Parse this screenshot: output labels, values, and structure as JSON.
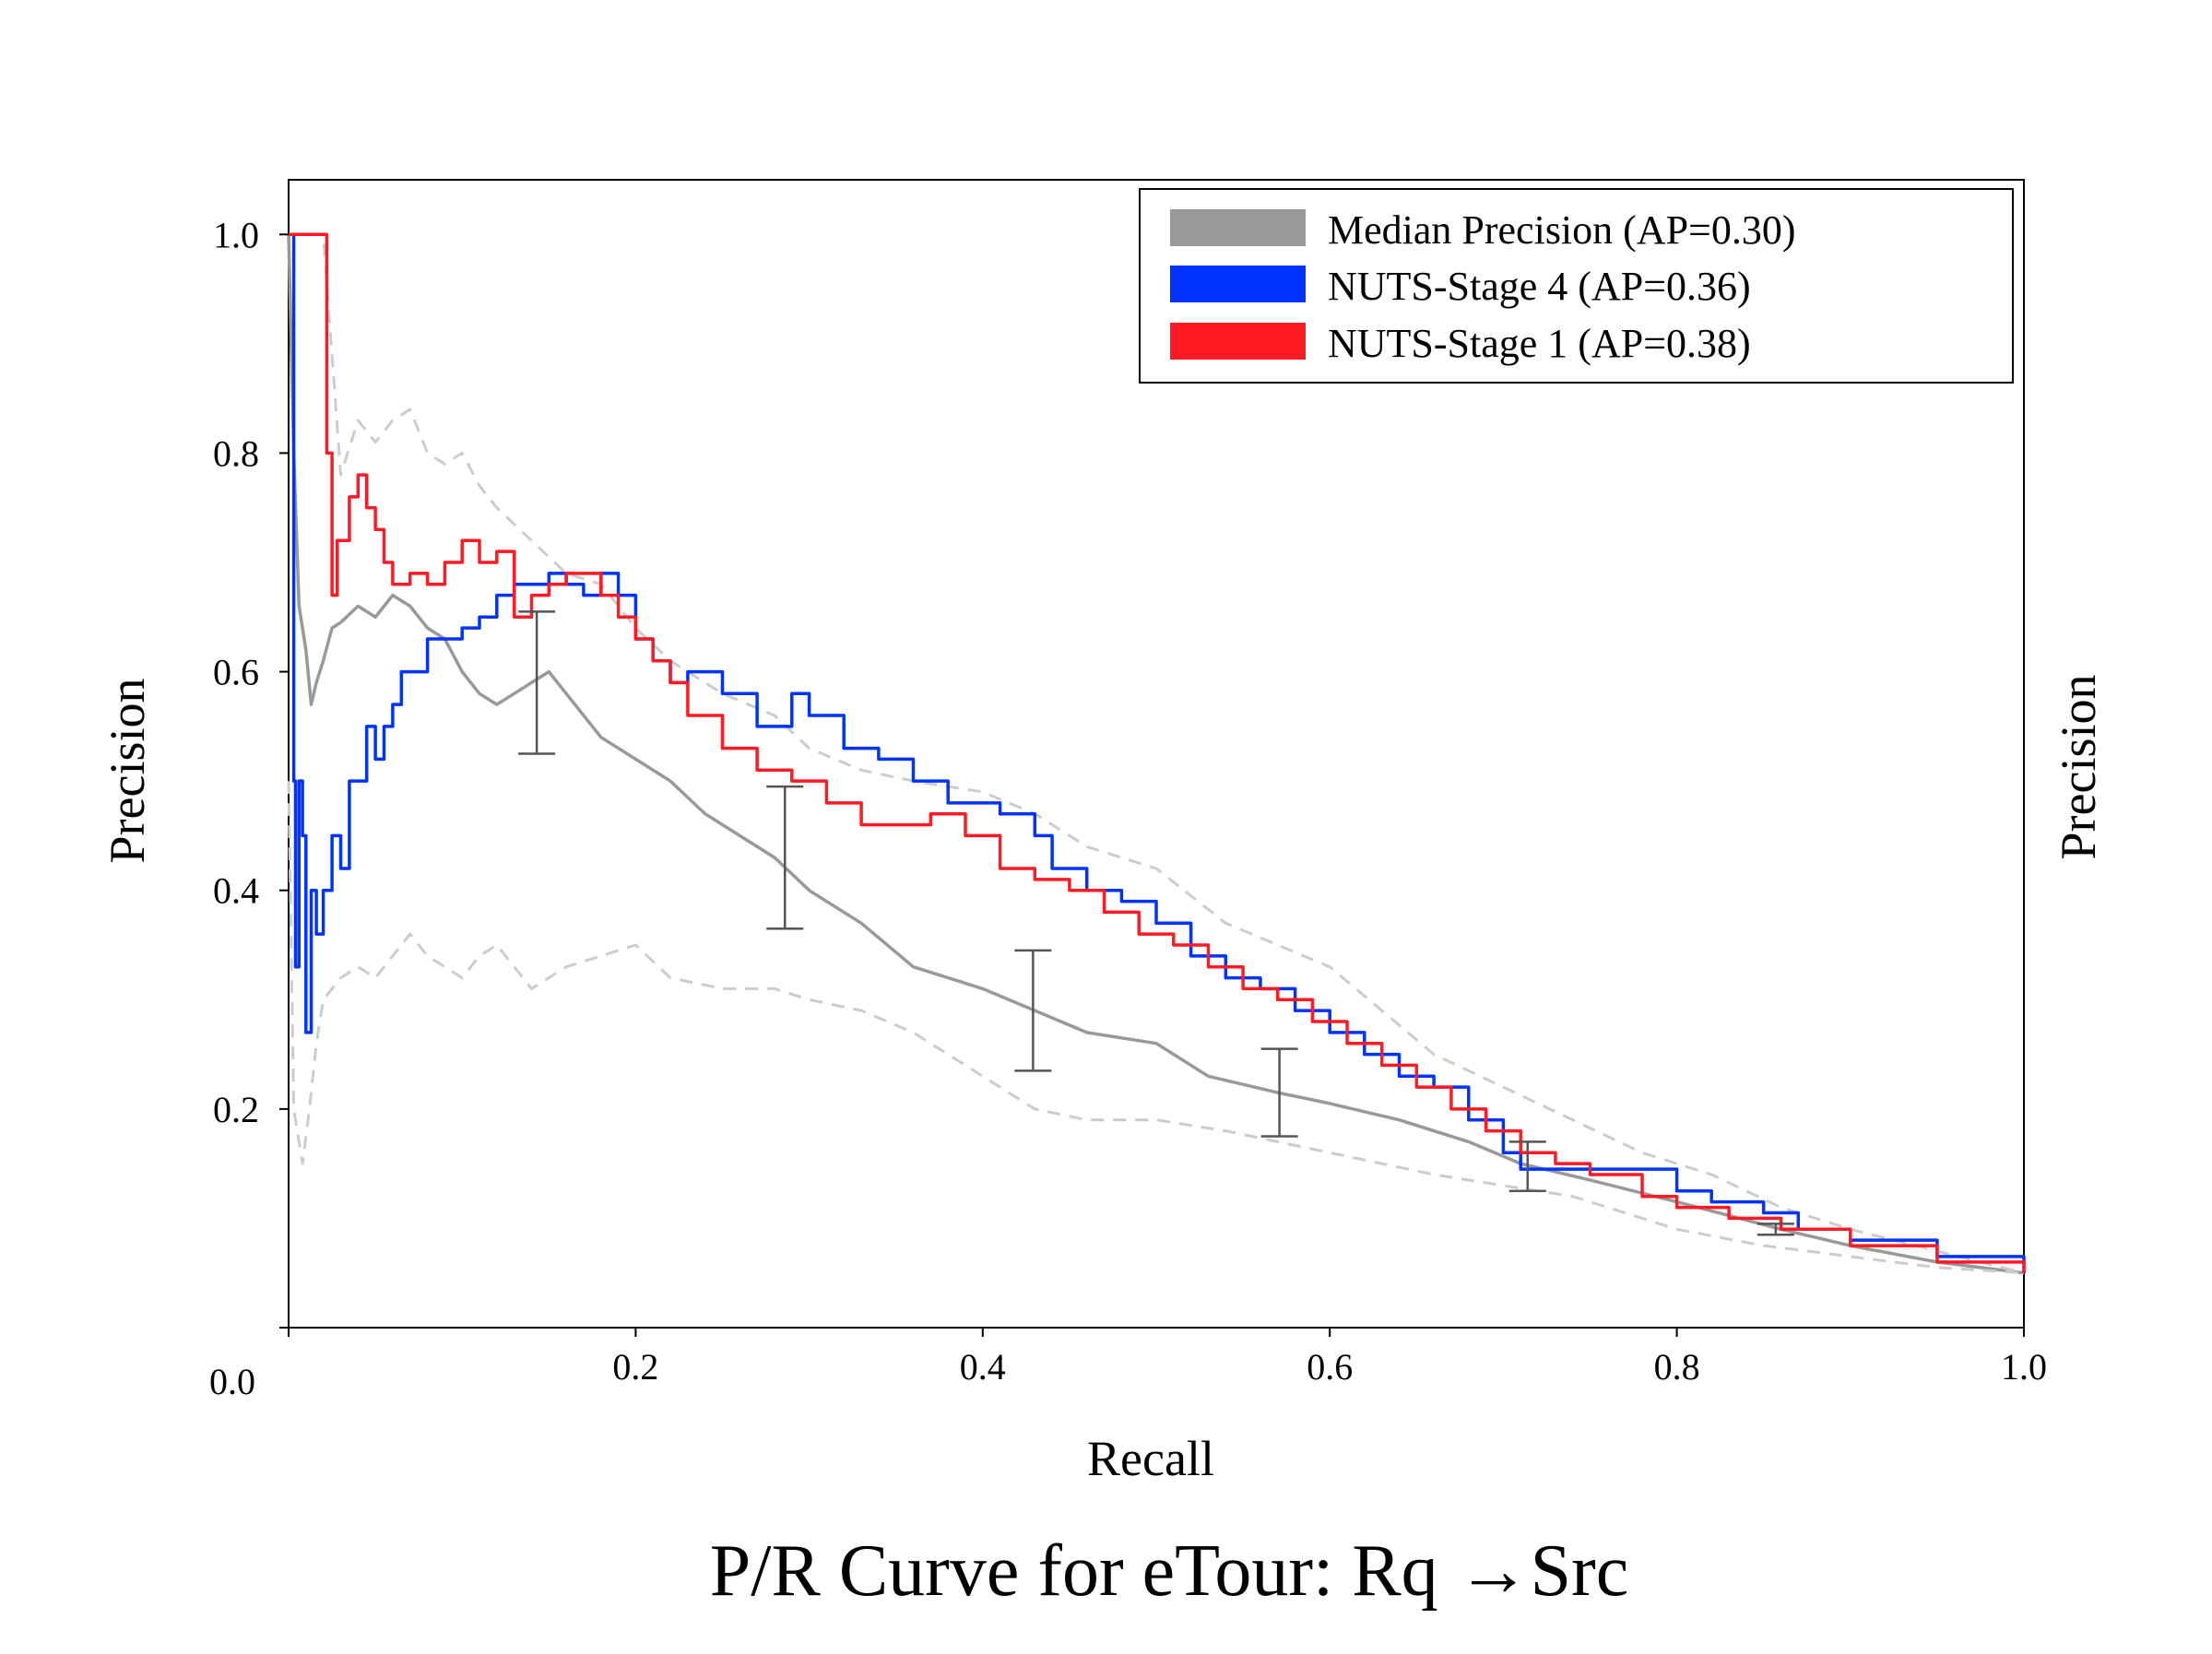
{
  "chart_data": {
    "type": "line",
    "title": "P/R Curve for eTour: Rq →Src",
    "xlabel": "Recall",
    "ylabel": "Precision",
    "ylabel_right": "Precision",
    "xlim": [
      0.0,
      1.0
    ],
    "ylim": [
      0.0,
      1.05
    ],
    "x_ticks": [
      {
        "value": 0.2,
        "label": "0.2"
      },
      {
        "value": 0.4,
        "label": "0.4"
      },
      {
        "value": 0.6,
        "label": "0.6"
      },
      {
        "value": 0.8,
        "label": "0.8"
      },
      {
        "value": 1.0,
        "label": "1.0"
      }
    ],
    "y_ticks": [
      {
        "value": 0.2,
        "label": "0.2"
      },
      {
        "value": 0.4,
        "label": "0.4"
      },
      {
        "value": 0.6,
        "label": "0.6"
      },
      {
        "value": 0.8,
        "label": "0.8"
      },
      {
        "value": 1.0,
        "label": "1.0"
      }
    ],
    "origin_label": "0.0",
    "grid": false,
    "legend_position": "top-right",
    "legend": [
      {
        "label": "Median Precision (AP=0.30)",
        "color": "#999999"
      },
      {
        "label": "NUTS-Stage 4 (AP=0.36)",
        "color": "#0033ff"
      },
      {
        "label": "NUTS-Stage 1 (AP=0.38)",
        "color": "#ff1a24"
      }
    ],
    "series": [
      {
        "name": "Median Precision (AP=0.30)",
        "color": "#999999",
        "style": "solid",
        "x": [
          0.0,
          0.003,
          0.006,
          0.01,
          0.013,
          0.016,
          0.02,
          0.025,
          0.03,
          0.04,
          0.05,
          0.06,
          0.07,
          0.08,
          0.09,
          0.1,
          0.11,
          0.12,
          0.13,
          0.14,
          0.15,
          0.16,
          0.18,
          0.2,
          0.22,
          0.24,
          0.26,
          0.28,
          0.3,
          0.33,
          0.36,
          0.4,
          0.43,
          0.46,
          0.5,
          0.53,
          0.57,
          0.6,
          0.64,
          0.68,
          0.71,
          0.75,
          0.8,
          0.86,
          0.9,
          0.95,
          1.0
        ],
        "y": [
          1.0,
          0.8,
          0.66,
          0.62,
          0.57,
          0.59,
          0.61,
          0.64,
          0.645,
          0.66,
          0.65,
          0.67,
          0.66,
          0.64,
          0.63,
          0.6,
          0.58,
          0.57,
          0.58,
          0.59,
          0.6,
          0.58,
          0.54,
          0.52,
          0.5,
          0.47,
          0.45,
          0.43,
          0.4,
          0.37,
          0.33,
          0.31,
          0.29,
          0.27,
          0.26,
          0.23,
          0.215,
          0.205,
          0.19,
          0.17,
          0.15,
          0.135,
          0.115,
          0.09,
          0.075,
          0.06,
          0.05
        ]
      },
      {
        "name": "",
        "color": "#cccccc",
        "style": "dashed",
        "x": [
          0.0,
          0.003,
          0.008,
          0.012,
          0.016,
          0.02,
          0.03,
          0.04,
          0.05,
          0.06,
          0.07,
          0.08,
          0.09,
          0.1,
          0.11,
          0.12,
          0.14,
          0.16,
          0.18,
          0.2,
          0.22,
          0.25,
          0.28,
          0.3,
          0.33,
          0.36,
          0.4,
          0.43,
          0.46,
          0.5,
          0.54,
          0.57,
          0.6,
          0.63,
          0.66,
          0.7,
          0.74,
          0.78,
          0.8,
          0.85,
          0.9,
          0.95,
          1.0
        ],
        "y": [
          0.5,
          0.2,
          0.15,
          0.2,
          0.26,
          0.3,
          0.32,
          0.33,
          0.32,
          0.34,
          0.36,
          0.34,
          0.33,
          0.32,
          0.34,
          0.35,
          0.31,
          0.33,
          0.34,
          0.35,
          0.32,
          0.31,
          0.31,
          0.3,
          0.29,
          0.27,
          0.23,
          0.2,
          0.19,
          0.19,
          0.18,
          0.17,
          0.16,
          0.15,
          0.14,
          0.13,
          0.12,
          0.1,
          0.09,
          0.075,
          0.065,
          0.055,
          0.05
        ]
      },
      {
        "name": "",
        "color": "#cccccc",
        "style": "dashed",
        "x": [
          0.0,
          0.01,
          0.02,
          0.03,
          0.04,
          0.05,
          0.06,
          0.07,
          0.08,
          0.09,
          0.1,
          0.11,
          0.12,
          0.14,
          0.16,
          0.18,
          0.2,
          0.22,
          0.25,
          0.28,
          0.3,
          0.33,
          0.36,
          0.4,
          0.43,
          0.46,
          0.5,
          0.54,
          0.57,
          0.6,
          0.63,
          0.66,
          0.7,
          0.74,
          0.78,
          0.82,
          0.86,
          0.9,
          0.95,
          1.0
        ],
        "y": [
          1.0,
          1.0,
          1.0,
          0.78,
          0.83,
          0.81,
          0.83,
          0.84,
          0.8,
          0.79,
          0.8,
          0.77,
          0.75,
          0.72,
          0.69,
          0.68,
          0.64,
          0.61,
          0.58,
          0.56,
          0.53,
          0.51,
          0.5,
          0.49,
          0.47,
          0.44,
          0.42,
          0.37,
          0.35,
          0.33,
          0.29,
          0.25,
          0.22,
          0.19,
          0.16,
          0.14,
          0.11,
          0.09,
          0.07,
          0.05
        ]
      },
      {
        "name": "NUTS-Stage 4 (AP=0.36)",
        "color": "#0033ff",
        "style": "solid",
        "x": [
          0.0,
          0.003,
          0.004,
          0.006,
          0.008,
          0.01,
          0.013,
          0.016,
          0.02,
          0.025,
          0.03,
          0.035,
          0.04,
          0.045,
          0.05,
          0.055,
          0.06,
          0.065,
          0.07,
          0.08,
          0.09,
          0.1,
          0.11,
          0.12,
          0.13,
          0.14,
          0.15,
          0.16,
          0.17,
          0.18,
          0.19,
          0.2,
          0.21,
          0.22,
          0.23,
          0.25,
          0.27,
          0.29,
          0.3,
          0.32,
          0.34,
          0.36,
          0.38,
          0.41,
          0.43,
          0.44,
          0.46,
          0.48,
          0.5,
          0.52,
          0.54,
          0.56,
          0.58,
          0.6,
          0.62,
          0.64,
          0.66,
          0.68,
          0.7,
          0.71,
          0.74,
          0.78,
          0.8,
          0.82,
          0.85,
          0.87,
          0.9,
          0.95,
          1.0
        ],
        "y": [
          1.0,
          0.5,
          0.33,
          0.5,
          0.45,
          0.27,
          0.4,
          0.36,
          0.4,
          0.45,
          0.42,
          0.5,
          0.5,
          0.55,
          0.52,
          0.55,
          0.57,
          0.6,
          0.6,
          0.63,
          0.63,
          0.64,
          0.65,
          0.67,
          0.68,
          0.68,
          0.69,
          0.68,
          0.67,
          0.69,
          0.67,
          0.63,
          0.61,
          0.59,
          0.6,
          0.58,
          0.55,
          0.58,
          0.56,
          0.53,
          0.52,
          0.5,
          0.48,
          0.47,
          0.45,
          0.42,
          0.4,
          0.39,
          0.37,
          0.34,
          0.32,
          0.31,
          0.29,
          0.27,
          0.25,
          0.23,
          0.22,
          0.19,
          0.16,
          0.145,
          0.145,
          0.145,
          0.125,
          0.115,
          0.105,
          0.09,
          0.08,
          0.065,
          0.05
        ]
      },
      {
        "name": "NUTS-Stage 1 (AP=0.38)",
        "color": "#ff1a24",
        "style": "solid",
        "x": [
          0.0,
          0.01,
          0.02,
          0.022,
          0.025,
          0.028,
          0.03,
          0.035,
          0.04,
          0.045,
          0.05,
          0.055,
          0.06,
          0.065,
          0.07,
          0.08,
          0.09,
          0.1,
          0.11,
          0.12,
          0.13,
          0.14,
          0.15,
          0.16,
          0.17,
          0.18,
          0.19,
          0.2,
          0.21,
          0.22,
          0.23,
          0.25,
          0.27,
          0.29,
          0.31,
          0.33,
          0.35,
          0.37,
          0.39,
          0.41,
          0.43,
          0.45,
          0.47,
          0.49,
          0.51,
          0.53,
          0.55,
          0.57,
          0.59,
          0.61,
          0.63,
          0.65,
          0.67,
          0.69,
          0.71,
          0.73,
          0.75,
          0.78,
          0.8,
          0.83,
          0.86,
          0.9,
          0.95,
          1.0
        ],
        "y": [
          1.0,
          1.0,
          1.0,
          0.8,
          0.67,
          0.72,
          0.72,
          0.76,
          0.78,
          0.75,
          0.73,
          0.7,
          0.68,
          0.68,
          0.69,
          0.68,
          0.7,
          0.72,
          0.7,
          0.71,
          0.65,
          0.67,
          0.68,
          0.69,
          0.69,
          0.67,
          0.65,
          0.63,
          0.61,
          0.59,
          0.56,
          0.53,
          0.51,
          0.5,
          0.48,
          0.46,
          0.46,
          0.47,
          0.45,
          0.42,
          0.41,
          0.4,
          0.38,
          0.36,
          0.35,
          0.33,
          0.31,
          0.3,
          0.28,
          0.26,
          0.24,
          0.22,
          0.2,
          0.18,
          0.16,
          0.15,
          0.14,
          0.12,
          0.11,
          0.1,
          0.09,
          0.075,
          0.06,
          0.05
        ]
      }
    ],
    "error_bars": [
      {
        "x": 0.143,
        "low": 0.525,
        "high": 0.655
      },
      {
        "x": 0.286,
        "low": 0.365,
        "high": 0.495
      },
      {
        "x": 0.429,
        "low": 0.235,
        "high": 0.345
      },
      {
        "x": 0.571,
        "low": 0.175,
        "high": 0.255
      },
      {
        "x": 0.714,
        "low": 0.125,
        "high": 0.17
      },
      {
        "x": 0.857,
        "low": 0.085,
        "high": 0.095
      }
    ]
  }
}
